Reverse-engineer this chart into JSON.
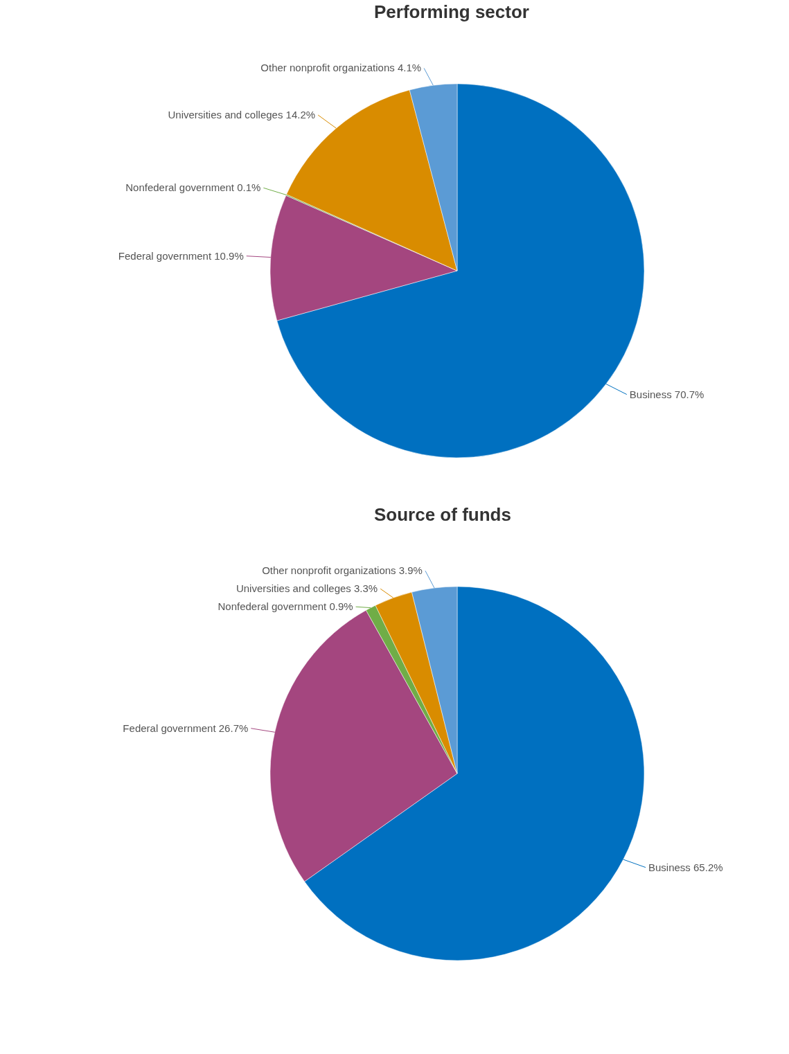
{
  "chart_data": [
    {
      "type": "pie",
      "title": "Performing sector",
      "categories": [
        "Business",
        "Federal government",
        "Nonfederal government",
        "Universities and colleges",
        "Other nonprofit organizations"
      ],
      "values": [
        70.7,
        10.9,
        0.1,
        14.2,
        4.1
      ],
      "colors": [
        "#0070c0",
        "#a4467f",
        "#70ad47",
        "#d98c00",
        "#5b9bd5"
      ],
      "value_labels": [
        "70.7%",
        "10.9%",
        "0.1%",
        "14.2%",
        "4.1%"
      ]
    },
    {
      "type": "pie",
      "title": "Source of funds",
      "categories": [
        "Business",
        "Federal government",
        "Nonfederal government",
        "Universities and colleges",
        "Other nonprofit organizations"
      ],
      "values": [
        65.2,
        26.7,
        0.9,
        3.3,
        3.9
      ],
      "colors": [
        "#0070c0",
        "#a4467f",
        "#70ad47",
        "#d98c00",
        "#5b9bd5"
      ],
      "value_labels": [
        "65.2%",
        "26.7%",
        "0.9%",
        "3.3%",
        "3.9%"
      ]
    }
  ]
}
